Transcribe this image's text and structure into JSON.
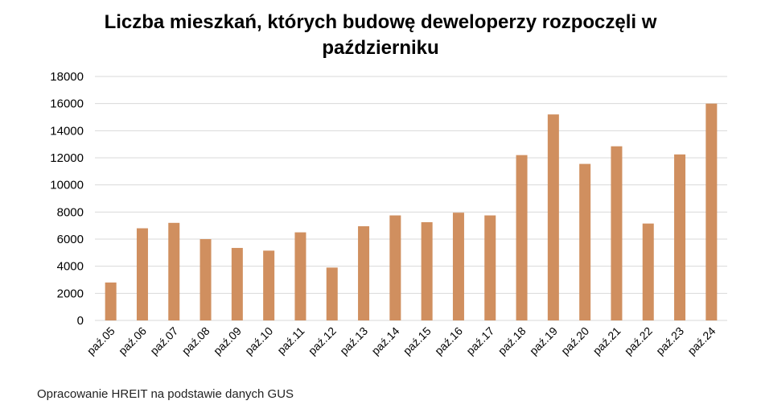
{
  "chart_data": {
    "type": "bar",
    "title_line1": "Liczba mieszkań, których budowę deweloperzy rozpoczęli w",
    "title_line2": "październiku",
    "categories": [
      "paź.05",
      "paź.06",
      "paź.07",
      "paź.08",
      "paź.09",
      "paź.10",
      "paź.11",
      "paź.12",
      "paź.13",
      "paź.14",
      "paź.15",
      "paź.16",
      "paź.17",
      "paź.18",
      "paź.19",
      "paź.20",
      "paź.21",
      "paź.22",
      "paź.23",
      "paź.24"
    ],
    "values": [
      2800,
      6800,
      7200,
      6000,
      5350,
      5150,
      6500,
      3900,
      6950,
      7750,
      7250,
      7950,
      7750,
      12200,
      15200,
      11550,
      12850,
      7150,
      12250,
      16000
    ],
    "yticks": [
      "0",
      "2000",
      "4000",
      "6000",
      "8000",
      "10000",
      "12000",
      "14000",
      "16000",
      "18000"
    ],
    "ylim": [
      0,
      18000
    ],
    "grid": true,
    "bar_color": "#D08F5F"
  },
  "source_note": "Opracowanie HREIT na podstawie danych GUS"
}
